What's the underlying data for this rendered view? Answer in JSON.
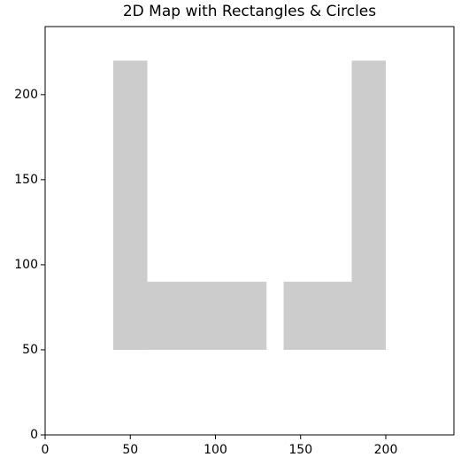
{
  "chart_data": {
    "type": "map",
    "title": "2D Map with Rectangles & Circles",
    "xlim": [
      0,
      240
    ],
    "ylim": [
      0,
      240
    ],
    "xticks": [
      0,
      50,
      100,
      150,
      200
    ],
    "yticks": [
      0,
      50,
      100,
      150,
      200
    ],
    "color": "#cccccc",
    "rectangles": [
      {
        "x": 40,
        "y": 50,
        "width": 20,
        "height": 170
      },
      {
        "x": 40,
        "y": 50,
        "width": 90,
        "height": 40
      },
      {
        "x": 140,
        "y": 50,
        "width": 40,
        "height": 40
      },
      {
        "x": 180,
        "y": 50,
        "width": 20,
        "height": 170
      }
    ]
  }
}
